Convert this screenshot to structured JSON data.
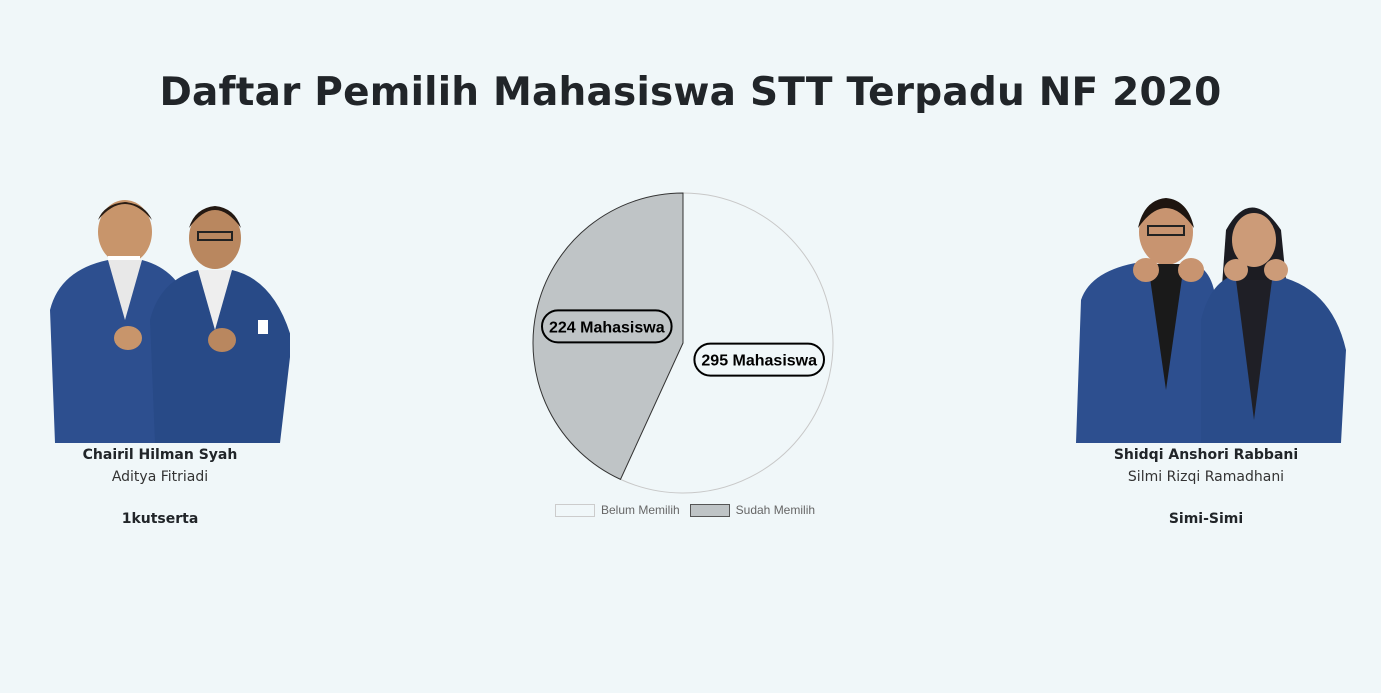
{
  "page": {
    "title": "Daftar Pemilih Mahasiswa STT Terpadu NF 2020"
  },
  "candidates": [
    {
      "primary": "Chairil Hilman Syah",
      "secondary": "Aditya Fitriadi",
      "team": "1kutserta"
    },
    {
      "primary": "Shidqi Anshori Rabbani",
      "secondary": "Silmi Rizqi Ramadhani",
      "team": "Simi-Simi"
    }
  ],
  "colors": {
    "background": "#f0f7f9",
    "belum_fill": "#f0f7f9",
    "sudah_fill": "#bfc4c6",
    "blazer": "#2d4f8f"
  },
  "chart_data": {
    "type": "pie",
    "categories": [
      "Belum Memilih",
      "Sudah Memilih"
    ],
    "values": [
      295,
      224
    ],
    "data_labels": [
      "295 Mahasiswa",
      "224 Mahasiswa"
    ],
    "legend_position": "bottom",
    "colors": [
      "#f0f7f9",
      "#bfc4c6"
    ]
  }
}
